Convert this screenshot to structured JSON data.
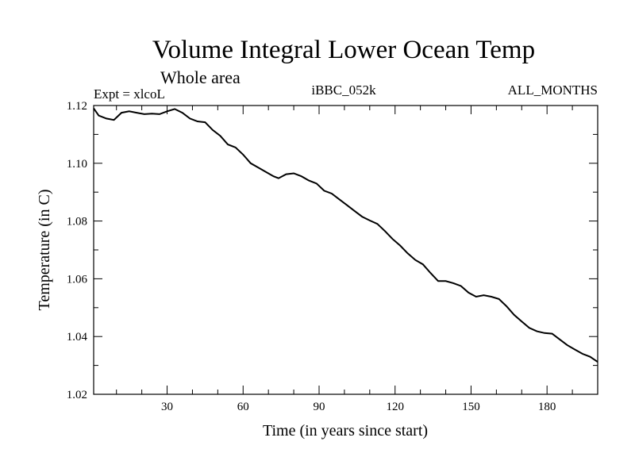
{
  "chart_data": {
    "type": "line",
    "title": "Volume Integral Lower Ocean Temp",
    "subtitle": "Whole area",
    "left_label": "Expt = xlcoL",
    "center_label": "iBBC_052k",
    "right_label": "ALL_MONTHS",
    "xlabel": "Time (in years since start)",
    "ylabel": "Temperature (in C)",
    "xlim": [
      1,
      200
    ],
    "ylim": [
      1.02,
      1.12
    ],
    "x_ticks": [
      30,
      60,
      90,
      120,
      150,
      180
    ],
    "x_tick_labels": [
      "30",
      "60",
      "90",
      "120",
      "150",
      "180"
    ],
    "y_ticks": [
      1.02,
      1.04,
      1.06,
      1.08,
      1.1,
      1.12
    ],
    "y_tick_labels": [
      "1.02",
      "1.04",
      "1.06",
      "1.08",
      "1.10",
      "1.12"
    ],
    "grid": false,
    "series": [
      {
        "name": "Temperature",
        "x": [
          1,
          3,
          6,
          9,
          12,
          15,
          18,
          21,
          24,
          27,
          30,
          33,
          36,
          39,
          42,
          45,
          48,
          51,
          54,
          57,
          60,
          63,
          66,
          69,
          72,
          74,
          77,
          80,
          83,
          86,
          89,
          92,
          95,
          98,
          101,
          104,
          107,
          110,
          113,
          116,
          119,
          122,
          125,
          128,
          131,
          134,
          137,
          140,
          143,
          146,
          149,
          152,
          155,
          158,
          161,
          164,
          167,
          170,
          173,
          176,
          179,
          182,
          185,
          188,
          191,
          194,
          197,
          200
        ],
        "values": [
          1.119,
          1.1165,
          1.1155,
          1.115,
          1.1175,
          1.118,
          1.1175,
          1.117,
          1.1172,
          1.117,
          1.118,
          1.1188,
          1.1175,
          1.1155,
          1.1145,
          1.1142,
          1.1115,
          1.1095,
          1.1065,
          1.1055,
          1.103,
          1.1,
          1.0985,
          1.097,
          1.0955,
          1.0948,
          1.0962,
          1.0965,
          1.0955,
          1.094,
          1.093,
          1.0905,
          1.0895,
          1.0875,
          1.0855,
          1.0835,
          1.0815,
          1.0802,
          1.079,
          1.0765,
          1.0738,
          1.0715,
          1.0688,
          1.0665,
          1.065,
          1.062,
          1.0592,
          1.0592,
          1.0585,
          1.0575,
          1.0552,
          1.0538,
          1.0543,
          1.0538,
          1.053,
          1.0505,
          1.0475,
          1.0452,
          1.043,
          1.0418,
          1.0412,
          1.041,
          1.039,
          1.037,
          1.0355,
          1.034,
          1.033,
          1.0312
        ]
      }
    ]
  },
  "colors": {
    "line": "#000000",
    "axes": "#000000",
    "background": "#ffffff"
  }
}
